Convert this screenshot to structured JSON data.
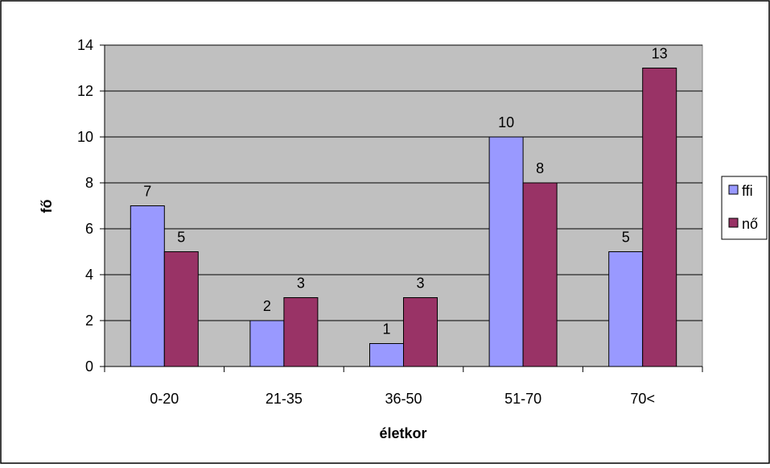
{
  "chart_data": {
    "type": "bar",
    "title": "",
    "xlabel": "életkor",
    "ylabel": "fő",
    "ylim": [
      0,
      14
    ],
    "yticks": [
      0,
      2,
      4,
      6,
      8,
      10,
      12,
      14
    ],
    "grid": true,
    "legend_position": "right",
    "categories": [
      "0-20",
      "21-35",
      "36-50",
      "51-70",
      "70<"
    ],
    "series": [
      {
        "name": "ffi",
        "values": [
          7,
          2,
          1,
          10,
          5
        ],
        "color": "#9999FF"
      },
      {
        "name": "nő",
        "values": [
          5,
          3,
          3,
          8,
          13
        ],
        "color": "#993366"
      }
    ],
    "plot_background": "#C0C0C0",
    "data_labels": true
  }
}
